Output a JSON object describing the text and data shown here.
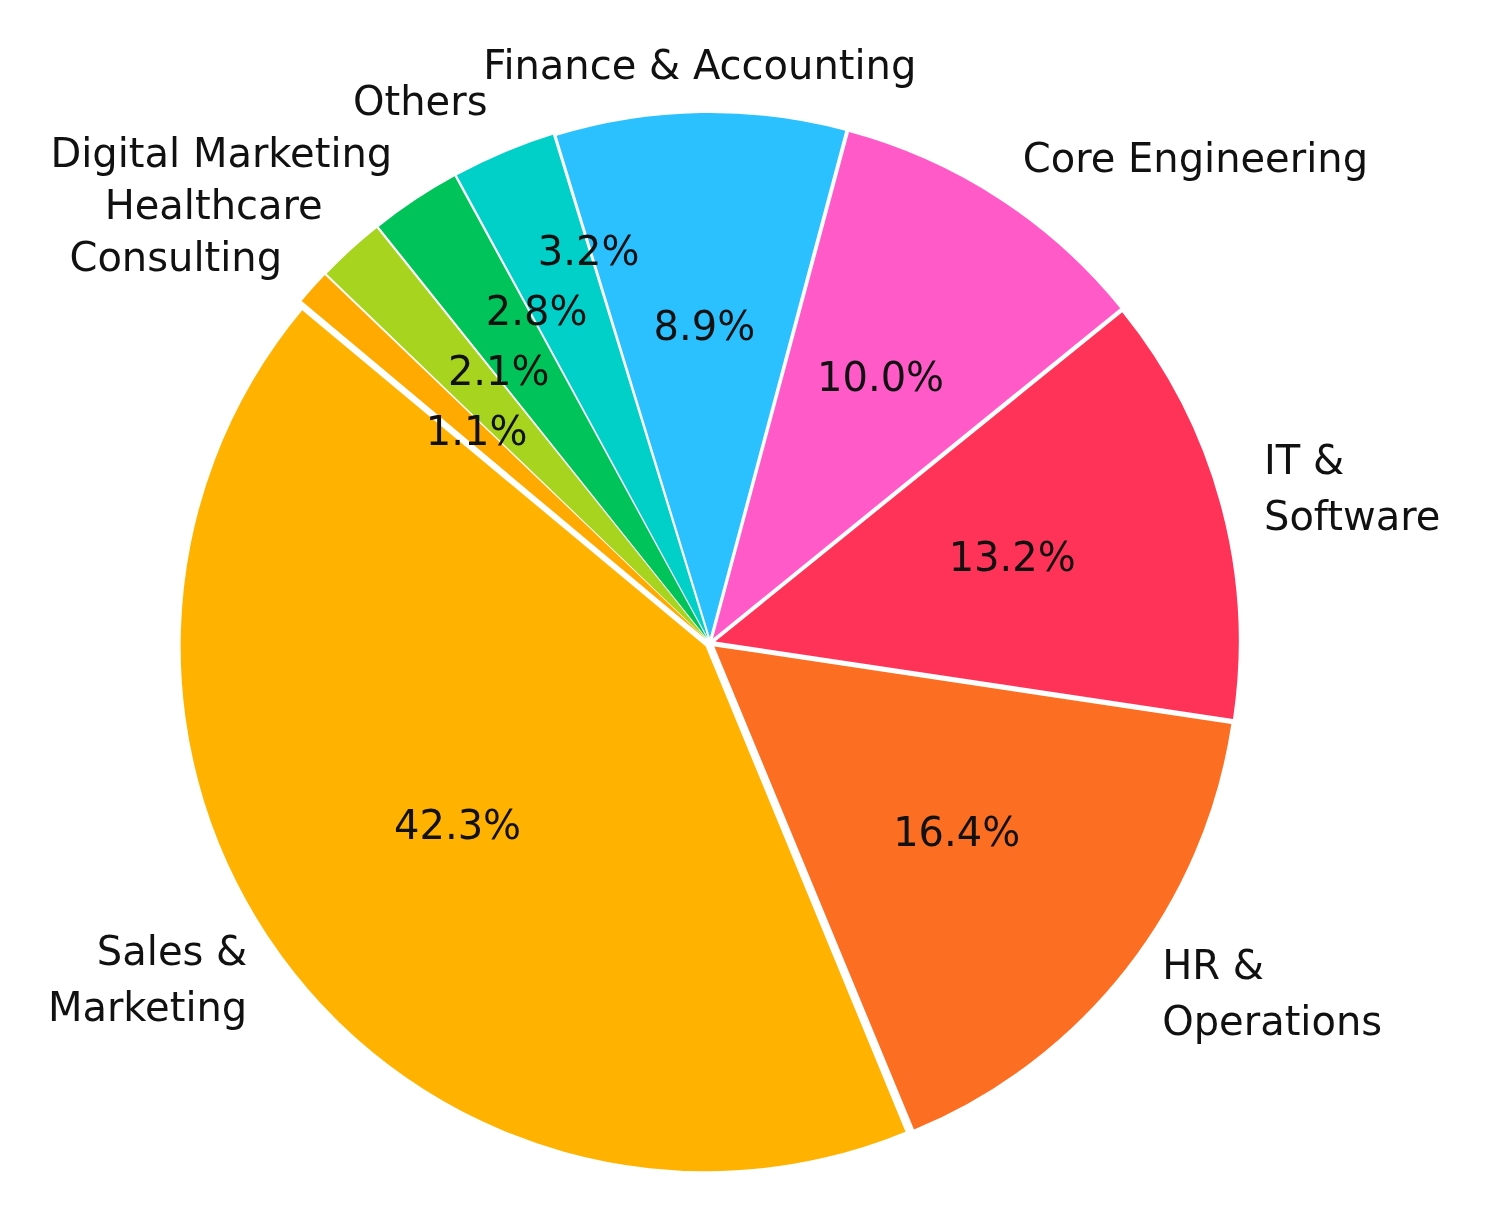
{
  "chart_data": {
    "type": "pie",
    "categories": [
      "Core Engineering",
      "IT & Software",
      "HR & Operations",
      "Sales & Marketing",
      "Consulting",
      "Healthcare",
      "Digital Marketing",
      "Others",
      "Finance & Accounting"
    ],
    "values": [
      10.0,
      13.2,
      16.4,
      42.3,
      1.1,
      2.1,
      2.8,
      3.2,
      8.9
    ],
    "colors": [
      "#ff5ac8",
      "#ff3358",
      "#fc6e22",
      "#ffb300",
      "#ffaa00",
      "#a6d41f",
      "#00c45a",
      "#00d0c8",
      "#2bc1ff"
    ],
    "value_labels": [
      "10.0%",
      "13.2%",
      "16.4%",
      "42.3%",
      "1.1%",
      "2.1%",
      "2.8%",
      "3.2%",
      "8.9%"
    ],
    "legend": false
  }
}
